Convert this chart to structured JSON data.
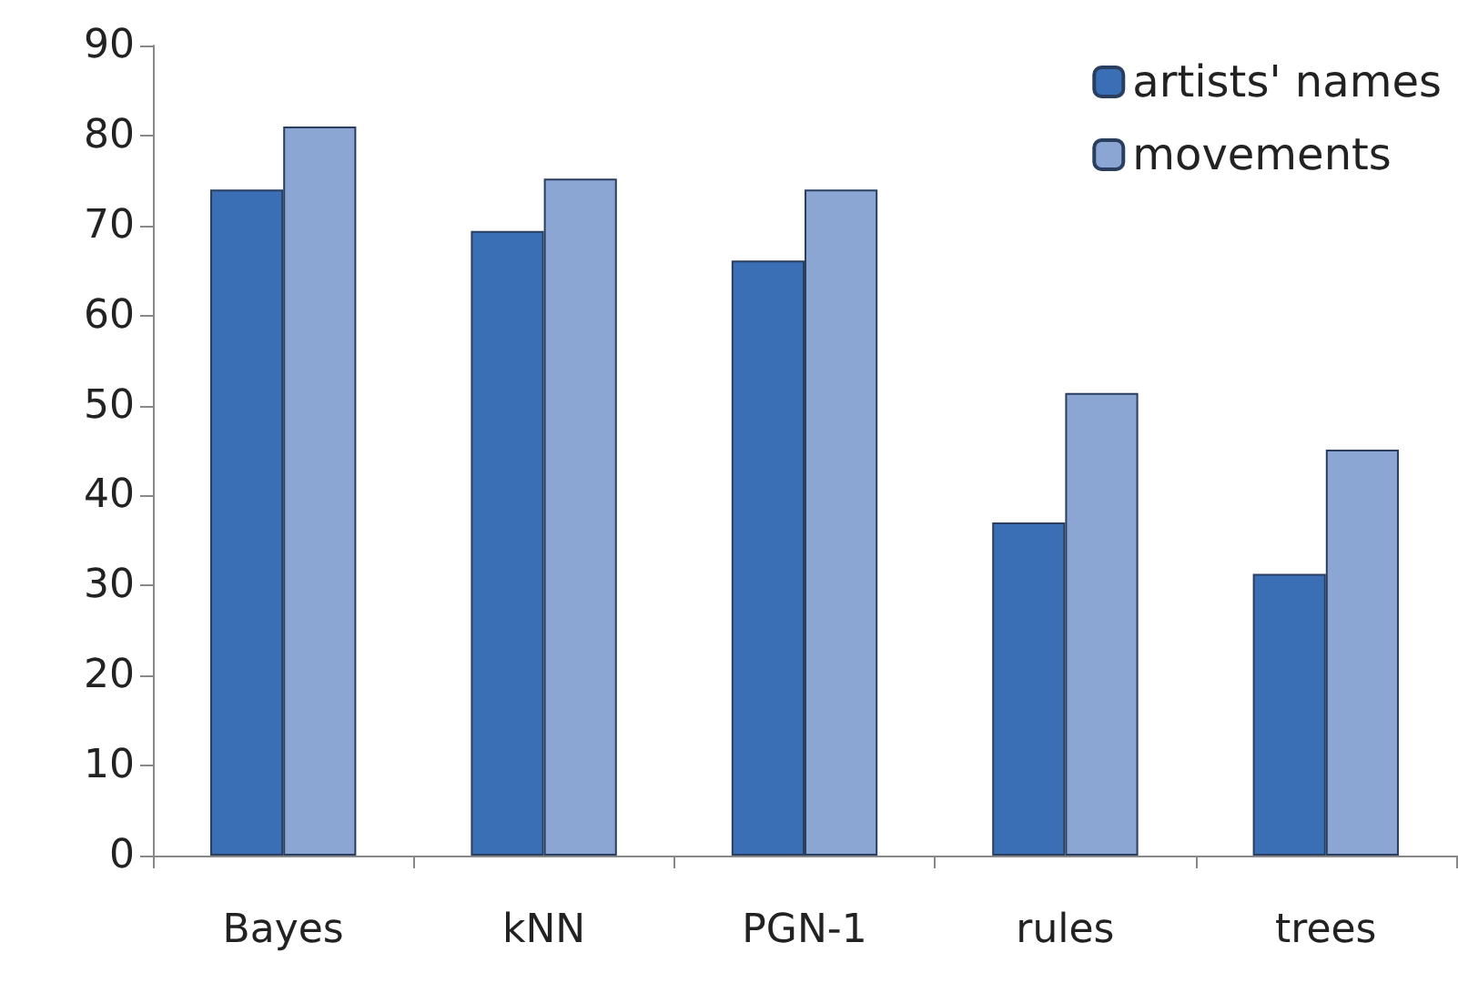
{
  "chart_data": {
    "type": "bar",
    "categories": [
      "Bayes",
      "kNN",
      "PGN-1",
      "rules",
      "trees"
    ],
    "series": [
      {
        "name": "artists' names",
        "color": "#3a6fb5",
        "values": [
          74,
          69.4,
          66.1,
          37,
          31.3
        ]
      },
      {
        "name": "movements",
        "color": "#8ba6d3",
        "values": [
          81,
          75.2,
          74,
          51.4,
          45.1
        ]
      }
    ],
    "ylim": [
      0,
      90
    ],
    "yticks": [
      0,
      10,
      20,
      30,
      40,
      50,
      60,
      70,
      80,
      90
    ],
    "grid": false,
    "legend": "top right"
  }
}
